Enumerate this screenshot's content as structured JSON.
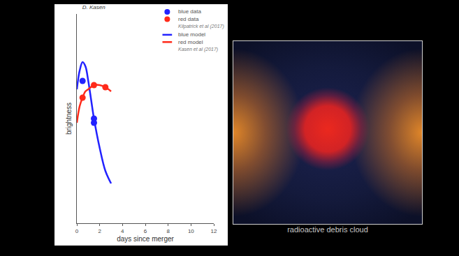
{
  "chart_data": {
    "type": "line",
    "title": "D. Kasen",
    "x_label": "days since merger",
    "y_label": "brightness",
    "xlim": [
      0,
      12
    ],
    "xticks": [
      0,
      2,
      4,
      6,
      8,
      10,
      12
    ],
    "ylim": [
      0,
      10
    ],
    "tick_labels": "x",
    "legend": "upper right",
    "legend_groups": [
      {
        "note": "Kilpatrick et al (2017)",
        "series": [
          {
            "name": "blue data",
            "type": "scatter",
            "marker": "circle",
            "color": "#2222ff",
            "x": [
              0.5,
              1.5,
              1.5
            ],
            "values": [
              6.8,
              5.0,
              4.8
            ]
          },
          {
            "name": "red data",
            "type": "scatter",
            "marker": "circle",
            "color": "#ff2a1a",
            "x": [
              0.5,
              1.5,
              2.5
            ],
            "values": [
              6.0,
              6.6,
              6.5
            ]
          }
        ]
      },
      {
        "note": "Kasen et al (2017)",
        "series": [
          {
            "name": "blue model",
            "type": "line",
            "line_style": "solid",
            "color": "#2222ff",
            "x": [
              0,
              0.25,
              0.5,
              0.75,
              1,
              1.25,
              1.5,
              2,
              2.5,
              3
            ],
            "values": [
              6.4,
              7.3,
              7.7,
              7.5,
              6.8,
              5.9,
              5.0,
              3.6,
              2.5,
              1.9
            ]
          },
          {
            "name": "red model",
            "type": "line",
            "line_style": "solid",
            "color": "#ff2a1a",
            "x": [
              0,
              0.25,
              0.5,
              0.75,
              1,
              1.5,
              2,
              2.5,
              3
            ],
            "values": [
              4.8,
              5.6,
              6.0,
              6.3,
              6.4,
              6.6,
              6.6,
              6.5,
              6.3
            ]
          }
        ]
      }
    ]
  },
  "image": {
    "caption": "radioactive debris cloud"
  }
}
